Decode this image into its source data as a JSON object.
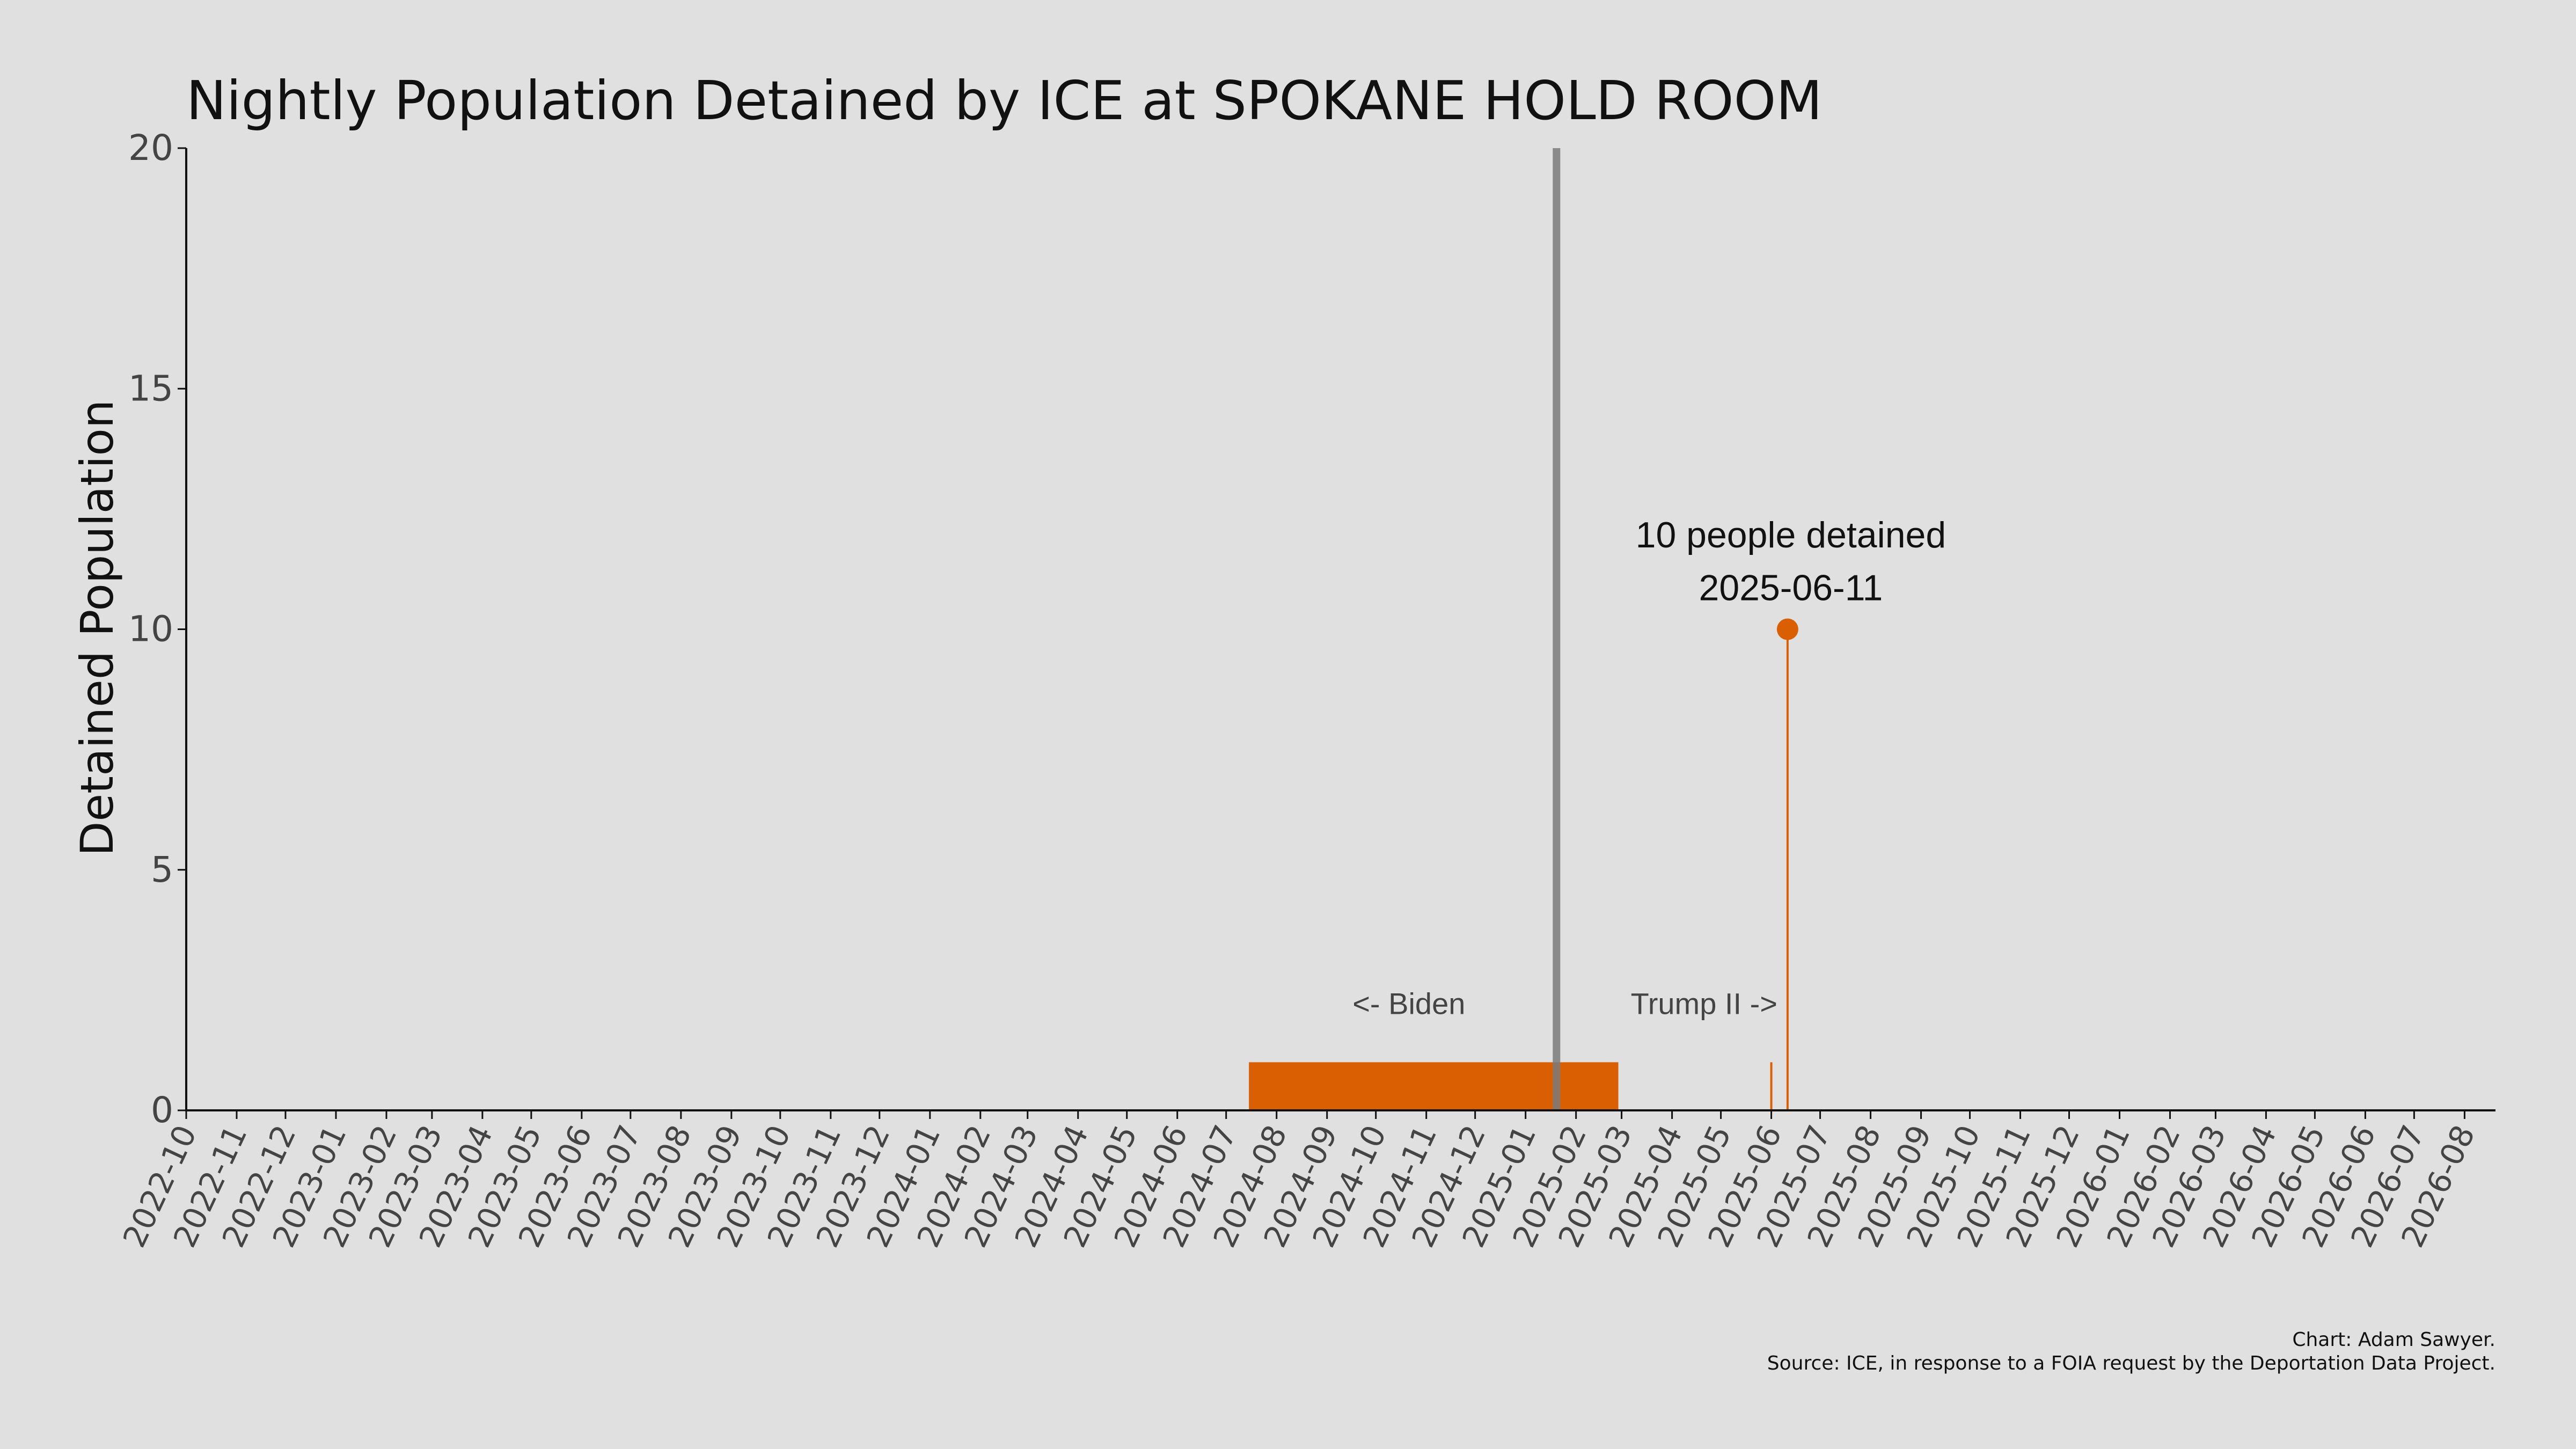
{
  "chart_data": {
    "type": "bar",
    "title": "Nightly Population Detained by ICE at SPOKANE HOLD ROOM",
    "xlabel": "",
    "ylabel": "Detained Population",
    "ylim": [
      0,
      20
    ],
    "yticks": [
      0,
      5,
      10,
      15,
      20
    ],
    "xlim": [
      "2022-10-01",
      "2026-08-20"
    ],
    "xticks": [
      "2022-10",
      "2022-11",
      "2022-12",
      "2023-01",
      "2023-02",
      "2023-03",
      "2023-04",
      "2023-05",
      "2023-06",
      "2023-07",
      "2023-08",
      "2023-09",
      "2023-10",
      "2023-11",
      "2023-12",
      "2024-01",
      "2024-02",
      "2024-03",
      "2024-04",
      "2024-05",
      "2024-06",
      "2024-07",
      "2024-08",
      "2024-09",
      "2024-10",
      "2024-11",
      "2024-12",
      "2025-01",
      "2025-02",
      "2025-03",
      "2025-04",
      "2025-05",
      "2025-06",
      "2025-07",
      "2025-08",
      "2025-09",
      "2025-10",
      "2025-11",
      "2025-12",
      "2026-01",
      "2026-02",
      "2026-03",
      "2026-04",
      "2026-05",
      "2026-06",
      "2026-07",
      "2026-08"
    ],
    "grid": false,
    "series": [
      {
        "color": "#d95f02",
        "points": [
          {
            "start": "2024-07-15",
            "end": "2025-02-26",
            "value": 1
          },
          {
            "start": "2025-06-01",
            "end": "2025-06-01",
            "value": 1
          },
          {
            "start": "2025-06-11",
            "end": "2025-06-11",
            "value": 10
          }
        ]
      }
    ],
    "reference_line": {
      "date": "2025-01-20",
      "color": "#7a7a7a"
    },
    "highlight": {
      "date": "2025-06-11",
      "value": 10,
      "label_line1": "10 people detained",
      "label_line2": "2025-06-11"
    },
    "era_labels": {
      "left": "<- Biden",
      "right": "Trump II ->"
    },
    "caption": {
      "line1": "Chart: Adam Sawyer.",
      "line2": "Source: ICE, in response to a FOIA request by the Deportation Data Project."
    }
  }
}
